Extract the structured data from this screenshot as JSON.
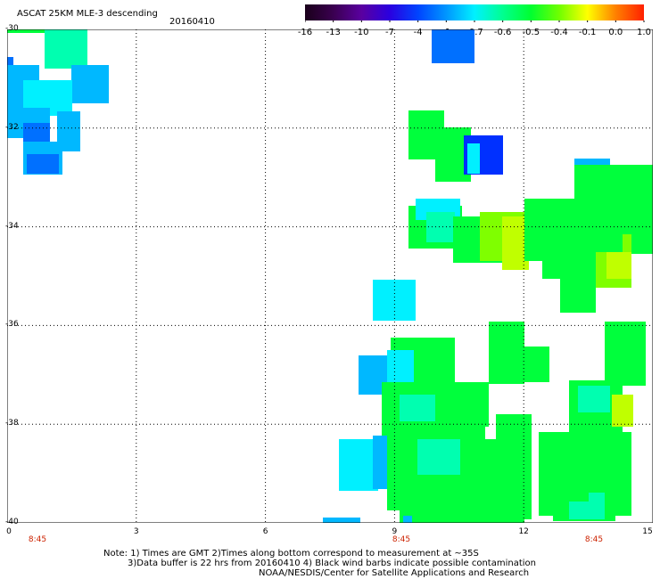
{
  "header": {
    "title": "ASCAT 25KM MLE-3 descending",
    "date": "20160410"
  },
  "colorbar": {
    "labels": [
      "-16",
      "-13",
      "-10",
      "-7",
      "-4",
      "-1",
      "-0.7",
      "-0.6",
      "-0.5",
      "-0.4",
      "-0.1",
      "0.0",
      "1.0"
    ],
    "colors": [
      "#1a001a",
      "#3a0050",
      "#5a00a0",
      "#2a00e0",
      "#0044ff",
      "#0096ff",
      "#00f0ff",
      "#00ff90",
      "#00ff30",
      "#70ff00",
      "#ffff00",
      "#ff8000",
      "#ff2000"
    ]
  },
  "map": {
    "lat_labels": [
      "-30",
      "-32",
      "-34",
      "-36",
      "-38",
      "-40"
    ],
    "lon_labels": [
      "0",
      "3",
      "6",
      "9",
      "12",
      "15"
    ],
    "time_labels": [
      "8:45",
      "8:45",
      "8:45"
    ],
    "lat_range": [
      -40,
      -30
    ],
    "lon_range": [
      0,
      15
    ],
    "grid": true,
    "colors": {
      "blue": "#0070ff",
      "light_blue": "#00b8ff",
      "cyan": "#00f0ff",
      "aqua": "#00ffb0",
      "green": "#00ff3c",
      "lime": "#7fff00",
      "yellow_green": "#c0ff00",
      "dark_blue": "#0030ff"
    }
  },
  "notes": {
    "line1": "Note: 1) Times are GMT 2)Times along bottom correspond to measurement at ~35S",
    "line2": "3)Data buffer is 22 hrs from 20160410 4) Black wind barbs indicate possible contamination",
    "line3": "NOAA/NESDIS/Center for Satellite Applications and Research"
  }
}
